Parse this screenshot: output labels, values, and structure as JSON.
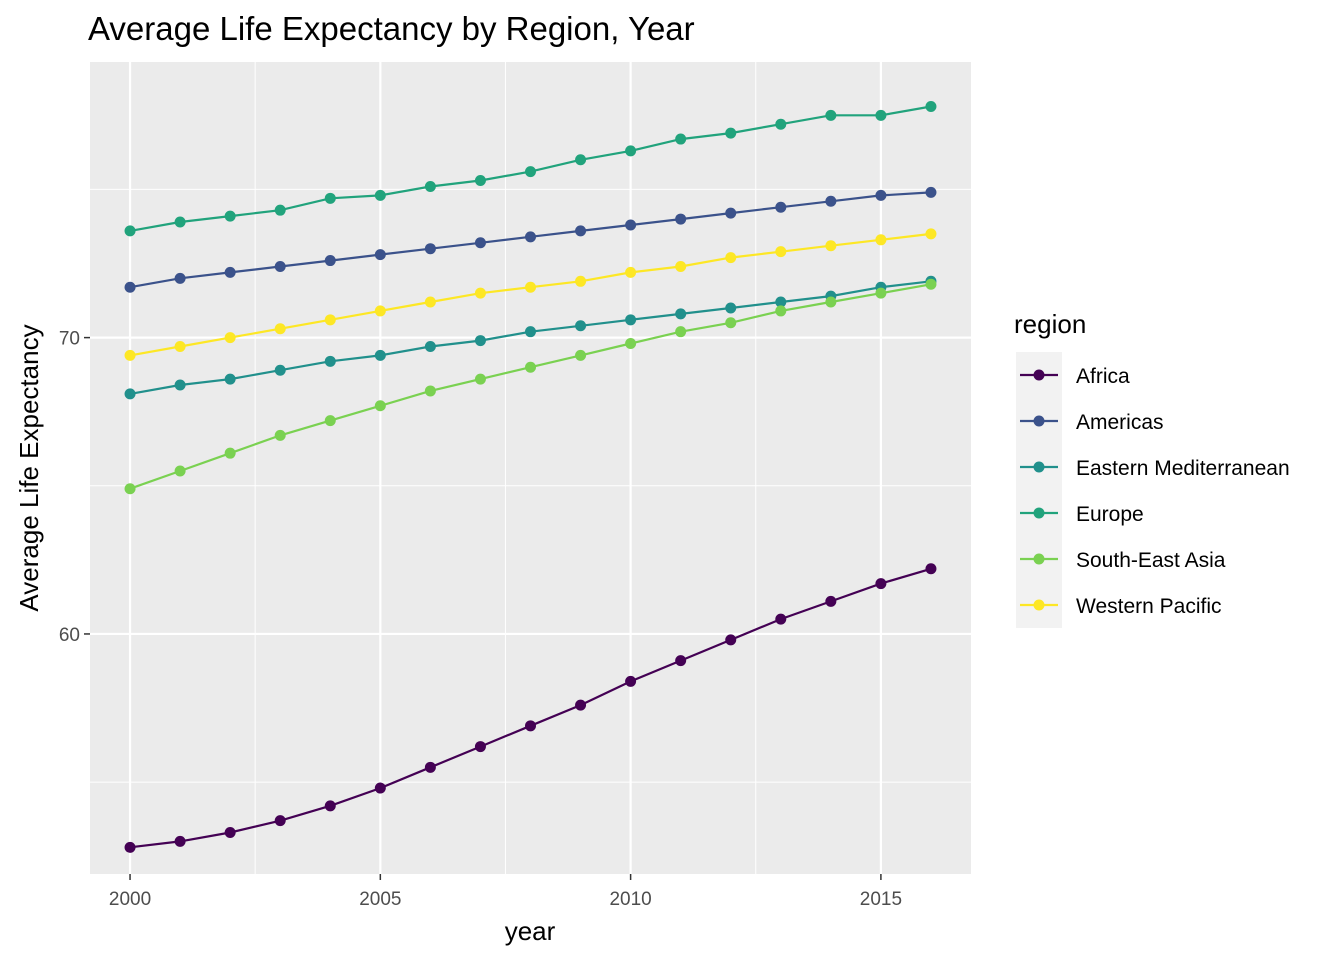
{
  "chart_data": {
    "type": "line",
    "title": "Average Life Expectancy by Region, Year",
    "xlabel": "year",
    "ylabel": "Average Life Expectancy",
    "x": [
      2000,
      2001,
      2002,
      2003,
      2004,
      2005,
      2006,
      2007,
      2008,
      2009,
      2010,
      2011,
      2012,
      2013,
      2014,
      2015,
      2016
    ],
    "xlim": [
      1999.2,
      2016.8
    ],
    "ylim": [
      51.9,
      79.3
    ],
    "x_ticks": [
      2000,
      2005,
      2010,
      2015
    ],
    "x_tick_labels": [
      "2000",
      "2005",
      "2010",
      "2015"
    ],
    "y_ticks": [
      60,
      70
    ],
    "y_tick_labels": [
      "60",
      "70"
    ],
    "grid": true,
    "legend": {
      "title": "region",
      "position": "right"
    },
    "series": [
      {
        "name": "Africa",
        "color": "#440154",
        "values": [
          52.8,
          53.0,
          53.3,
          53.7,
          54.2,
          54.8,
          55.5,
          56.2,
          56.9,
          57.6,
          58.4,
          59.1,
          59.8,
          60.5,
          61.1,
          61.7,
          62.2
        ]
      },
      {
        "name": "Americas",
        "color": "#3b528b",
        "values": [
          71.7,
          72.0,
          72.2,
          72.4,
          72.6,
          72.8,
          73.0,
          73.2,
          73.4,
          73.6,
          73.8,
          74.0,
          74.2,
          74.4,
          74.6,
          74.8,
          74.9
        ]
      },
      {
        "name": "Eastern Mediterranean",
        "color": "#21908c",
        "values": [
          68.1,
          68.4,
          68.6,
          68.9,
          69.2,
          69.4,
          69.7,
          69.9,
          70.2,
          70.4,
          70.6,
          70.8,
          71.0,
          71.2,
          71.4,
          71.7,
          71.9
        ]
      },
      {
        "name": "Europe",
        "color": "#21a37c",
        "values": [
          73.6,
          73.9,
          74.1,
          74.3,
          74.7,
          74.8,
          75.1,
          75.3,
          75.6,
          76.0,
          76.3,
          76.7,
          76.9,
          77.2,
          77.5,
          77.5,
          77.8
        ]
      },
      {
        "name": "South-East Asia",
        "color": "#7ad151",
        "values": [
          64.9,
          65.5,
          66.1,
          66.7,
          67.2,
          67.7,
          68.2,
          68.6,
          69.0,
          69.4,
          69.8,
          70.2,
          70.5,
          70.9,
          71.2,
          71.5,
          71.8
        ]
      },
      {
        "name": "Western Pacific",
        "color": "#fde725",
        "values": [
          69.4,
          69.7,
          70.0,
          70.3,
          70.6,
          70.9,
          71.2,
          71.5,
          71.7,
          71.9,
          72.2,
          72.4,
          72.7,
          72.9,
          73.1,
          73.3,
          73.5
        ]
      }
    ]
  }
}
